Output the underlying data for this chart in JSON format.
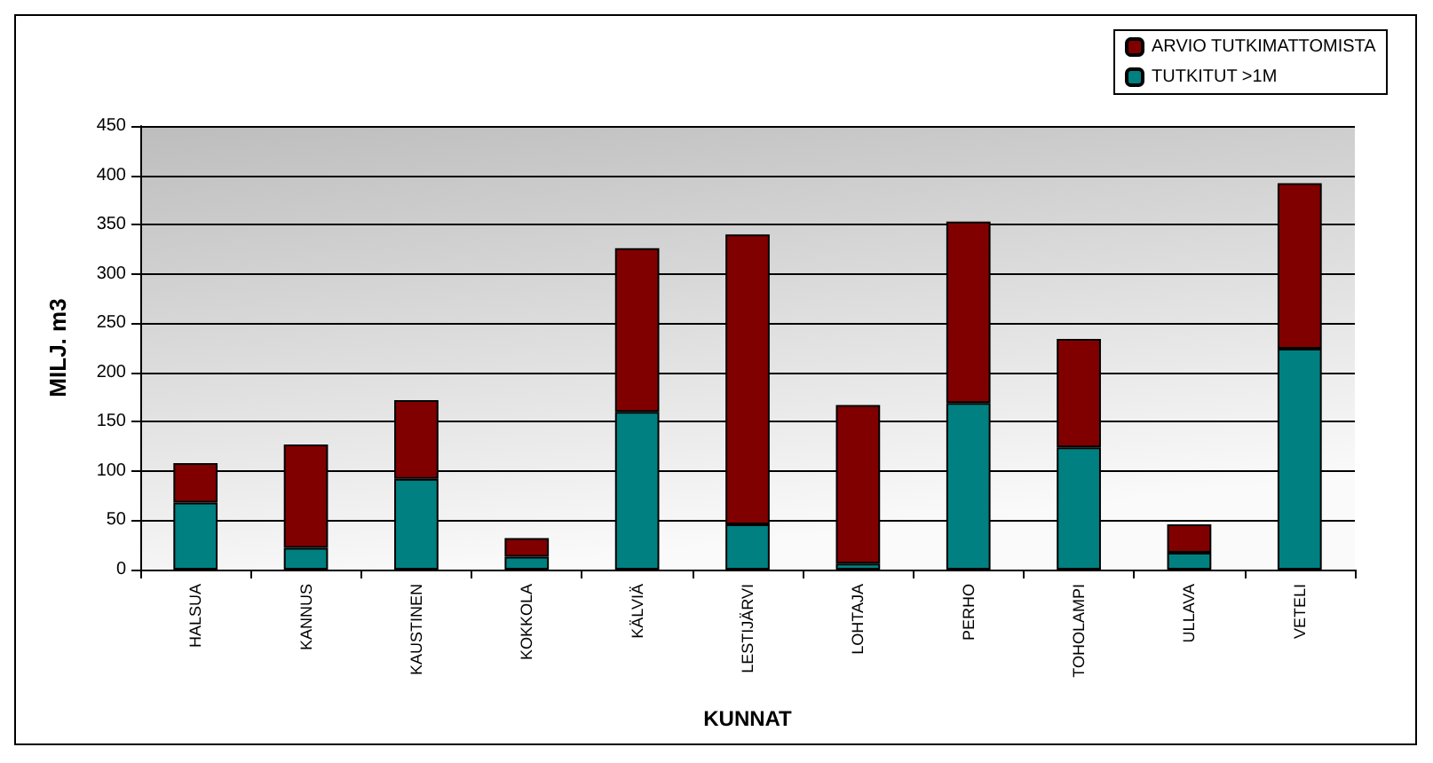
{
  "chart_data": {
    "type": "bar",
    "stacked": true,
    "xlabel": "KUNNAT",
    "ylabel": "MILJ. m3",
    "categories": [
      "HALSUA",
      "KANNUS",
      "KAUSTINEN",
      "KOKKOLA",
      "KÄLVIÄ",
      "LESTIJÄRVI",
      "LOHTAJA",
      "PERHO",
      "TOHOLAMPI",
      "ULLAVA",
      "VETELI"
    ],
    "series": [
      {
        "name": "TUTKITUT >1M",
        "color": "#008080",
        "values": [
          68,
          22,
          92,
          13,
          160,
          46,
          6,
          169,
          124,
          17,
          224
        ]
      },
      {
        "name": "ARVIO TUTKIMATTOMISTA",
        "color": "#800000",
        "values": [
          40,
          105,
          80,
          19,
          166,
          294,
          161,
          184,
          110,
          29,
          168
        ]
      }
    ],
    "ylim": [
      0,
      450
    ],
    "yticks": [
      0,
      50,
      100,
      150,
      200,
      250,
      300,
      350,
      400,
      450
    ],
    "grid": "y",
    "legend": "top right"
  }
}
